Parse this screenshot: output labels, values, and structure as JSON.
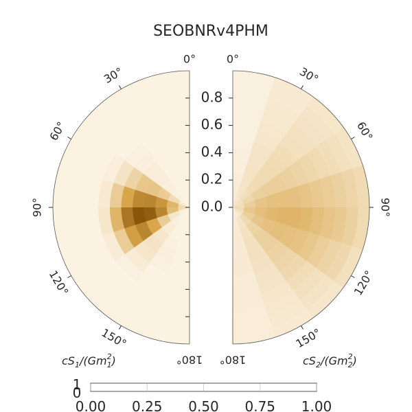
{
  "chart_data": {
    "type": "heatmap",
    "title": "SEOBNRv4PHM",
    "panels": [
      {
        "name": "left-disk",
        "label": "cS1/(Gm1²)",
        "label_parts": {
          "pre": "cS",
          "sub1": "1",
          "mid": "/(Gm",
          "sup": "2",
          "sub2": "1",
          "post": ")"
        },
        "magnitude_range": [
          0,
          1
        ],
        "tilt_range_deg": [
          0,
          180
        ],
        "angle_tick_labels": [
          "0°",
          "30°",
          "60°",
          "90°",
          "120°",
          "150°",
          "180°"
        ],
        "density": [
          [
            0.0,
            0.0,
            0.0,
            0.0,
            0.0,
            0.0,
            0.0,
            0.0,
            0.0,
            0.0,
            0.0,
            0.0
          ],
          [
            0.0,
            0.0,
            0.0,
            0.0,
            0.0,
            0.0,
            0.0,
            0.0,
            0.0,
            0.0,
            0.0,
            0.0
          ],
          [
            0.0,
            0.01,
            0.02,
            0.03,
            0.03,
            0.02,
            0.01,
            0.0,
            0.0,
            0.0,
            0.0,
            0.0
          ],
          [
            0.05,
            0.15,
            0.25,
            0.3,
            0.28,
            0.2,
            0.1,
            0.02,
            0.0,
            0.0,
            0.0,
            0.0
          ],
          [
            0.15,
            0.4,
            0.6,
            0.7,
            0.68,
            0.5,
            0.25,
            0.05,
            0.0,
            0.0,
            0.0,
            0.0
          ],
          [
            0.15,
            0.35,
            0.7,
            0.95,
            1.0,
            0.8,
            0.4,
            0.08,
            0.0,
            0.0,
            0.0,
            0.0
          ],
          [
            0.02,
            0.08,
            0.25,
            0.5,
            0.7,
            0.55,
            0.25,
            0.04,
            0.0,
            0.0,
            0.0,
            0.0
          ],
          [
            0.0,
            0.01,
            0.04,
            0.08,
            0.1,
            0.08,
            0.04,
            0.01,
            0.0,
            0.0,
            0.0,
            0.0
          ],
          [
            0.0,
            0.0,
            0.0,
            0.01,
            0.02,
            0.01,
            0.0,
            0.0,
            0.0,
            0.0,
            0.0,
            0.0
          ],
          [
            0.0,
            0.0,
            0.0,
            0.0,
            0.0,
            0.0,
            0.0,
            0.0,
            0.0,
            0.0,
            0.0,
            0.0
          ]
        ]
      },
      {
        "name": "right-disk",
        "label": "cS2/(Gm2²)",
        "label_parts": {
          "pre": "cS",
          "sub1": "2",
          "mid": "/(Gm",
          "sup": "2",
          "sub2": "2",
          "post": ")"
        },
        "magnitude_range": [
          0,
          1
        ],
        "tilt_range_deg": [
          0,
          180
        ],
        "angle_tick_labels": [
          "0°",
          "30°",
          "60°",
          "90°",
          "120°",
          "150°",
          "180°"
        ],
        "density": [
          [
            0.05,
            0.04,
            0.03,
            0.02,
            0.02,
            0.01,
            0.01,
            0.01,
            0.01,
            0.01,
            0.01,
            0.01
          ],
          [
            0.08,
            0.09,
            0.09,
            0.1,
            0.09,
            0.09,
            0.08,
            0.07,
            0.06,
            0.06,
            0.05,
            0.05
          ],
          [
            0.1,
            0.13,
            0.15,
            0.16,
            0.16,
            0.15,
            0.14,
            0.12,
            0.11,
            0.1,
            0.09,
            0.08
          ],
          [
            0.12,
            0.18,
            0.22,
            0.24,
            0.24,
            0.22,
            0.2,
            0.18,
            0.16,
            0.14,
            0.12,
            0.1
          ],
          [
            0.14,
            0.24,
            0.3,
            0.32,
            0.33,
            0.32,
            0.3,
            0.27,
            0.25,
            0.22,
            0.19,
            0.15
          ],
          [
            0.15,
            0.28,
            0.34,
            0.38,
            0.4,
            0.4,
            0.38,
            0.34,
            0.3,
            0.26,
            0.22,
            0.16
          ],
          [
            0.12,
            0.24,
            0.3,
            0.33,
            0.34,
            0.33,
            0.31,
            0.28,
            0.24,
            0.2,
            0.17,
            0.12
          ],
          [
            0.08,
            0.16,
            0.2,
            0.22,
            0.22,
            0.21,
            0.19,
            0.17,
            0.14,
            0.12,
            0.1,
            0.08
          ],
          [
            0.05,
            0.09,
            0.11,
            0.12,
            0.12,
            0.11,
            0.1,
            0.09,
            0.08,
            0.07,
            0.06,
            0.05
          ],
          [
            0.03,
            0.04,
            0.05,
            0.05,
            0.05,
            0.05,
            0.04,
            0.04,
            0.04,
            0.03,
            0.03,
            0.03
          ]
        ]
      }
    ],
    "radial_tick_labels": [
      "0.0",
      "0.2",
      "0.4",
      "0.6",
      "0.8"
    ],
    "radial_tick_values": [
      0,
      0.2,
      0.4,
      0.6,
      0.8
    ],
    "colorbar": {
      "tick_labels": [
        "0.00",
        "0.25",
        "0.50",
        "0.75",
        "1.00"
      ],
      "tick_values": [
        0,
        0.25,
        0.5,
        0.75,
        1.0
      ],
      "side_labels": [
        "1",
        "0"
      ],
      "range": [
        0,
        1
      ]
    },
    "colors": {
      "low": "#fbf2e2",
      "mid": "#d9a64b",
      "high": "#8a5609",
      "text": "#262626",
      "edge": "#555555"
    },
    "grid": false,
    "legend": "none"
  }
}
